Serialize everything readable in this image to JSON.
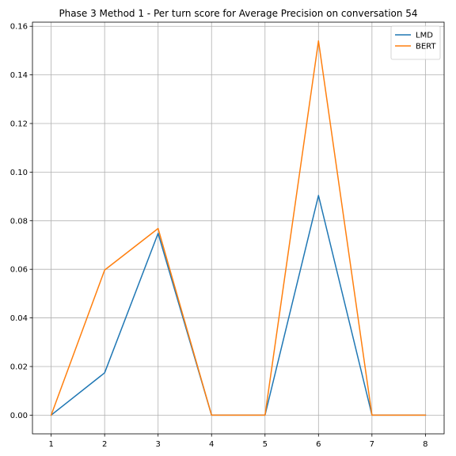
{
  "chart_data": {
    "type": "line",
    "title": "Phase 3 Method 1 - Per turn score for Average Precision on conversation 54",
    "xlabel": "",
    "ylabel": "",
    "x": [
      1,
      2,
      3,
      4,
      5,
      6,
      7,
      8
    ],
    "xticks": [
      "1",
      "2",
      "3",
      "4",
      "5",
      "6",
      "7",
      "8"
    ],
    "yticks": [
      "0.00",
      "0.02",
      "0.04",
      "0.06",
      "0.08",
      "0.10",
      "0.12",
      "0.14",
      "0.16"
    ],
    "xlim": [
      0.65,
      8.35
    ],
    "ylim": [
      -0.0077,
      0.1617
    ],
    "grid": true,
    "legend_position": "top-right",
    "series": [
      {
        "name": "LMD",
        "color": "#1f77b4",
        "values": [
          0.0,
          0.0174,
          0.0748,
          0.0,
          0.0,
          0.0904,
          0.0,
          0.0
        ]
      },
      {
        "name": "BERT",
        "color": "#ff7f0e",
        "values": [
          0.0,
          0.0597,
          0.0768,
          0.0,
          0.0,
          0.154,
          0.0,
          0.0
        ]
      }
    ]
  }
}
